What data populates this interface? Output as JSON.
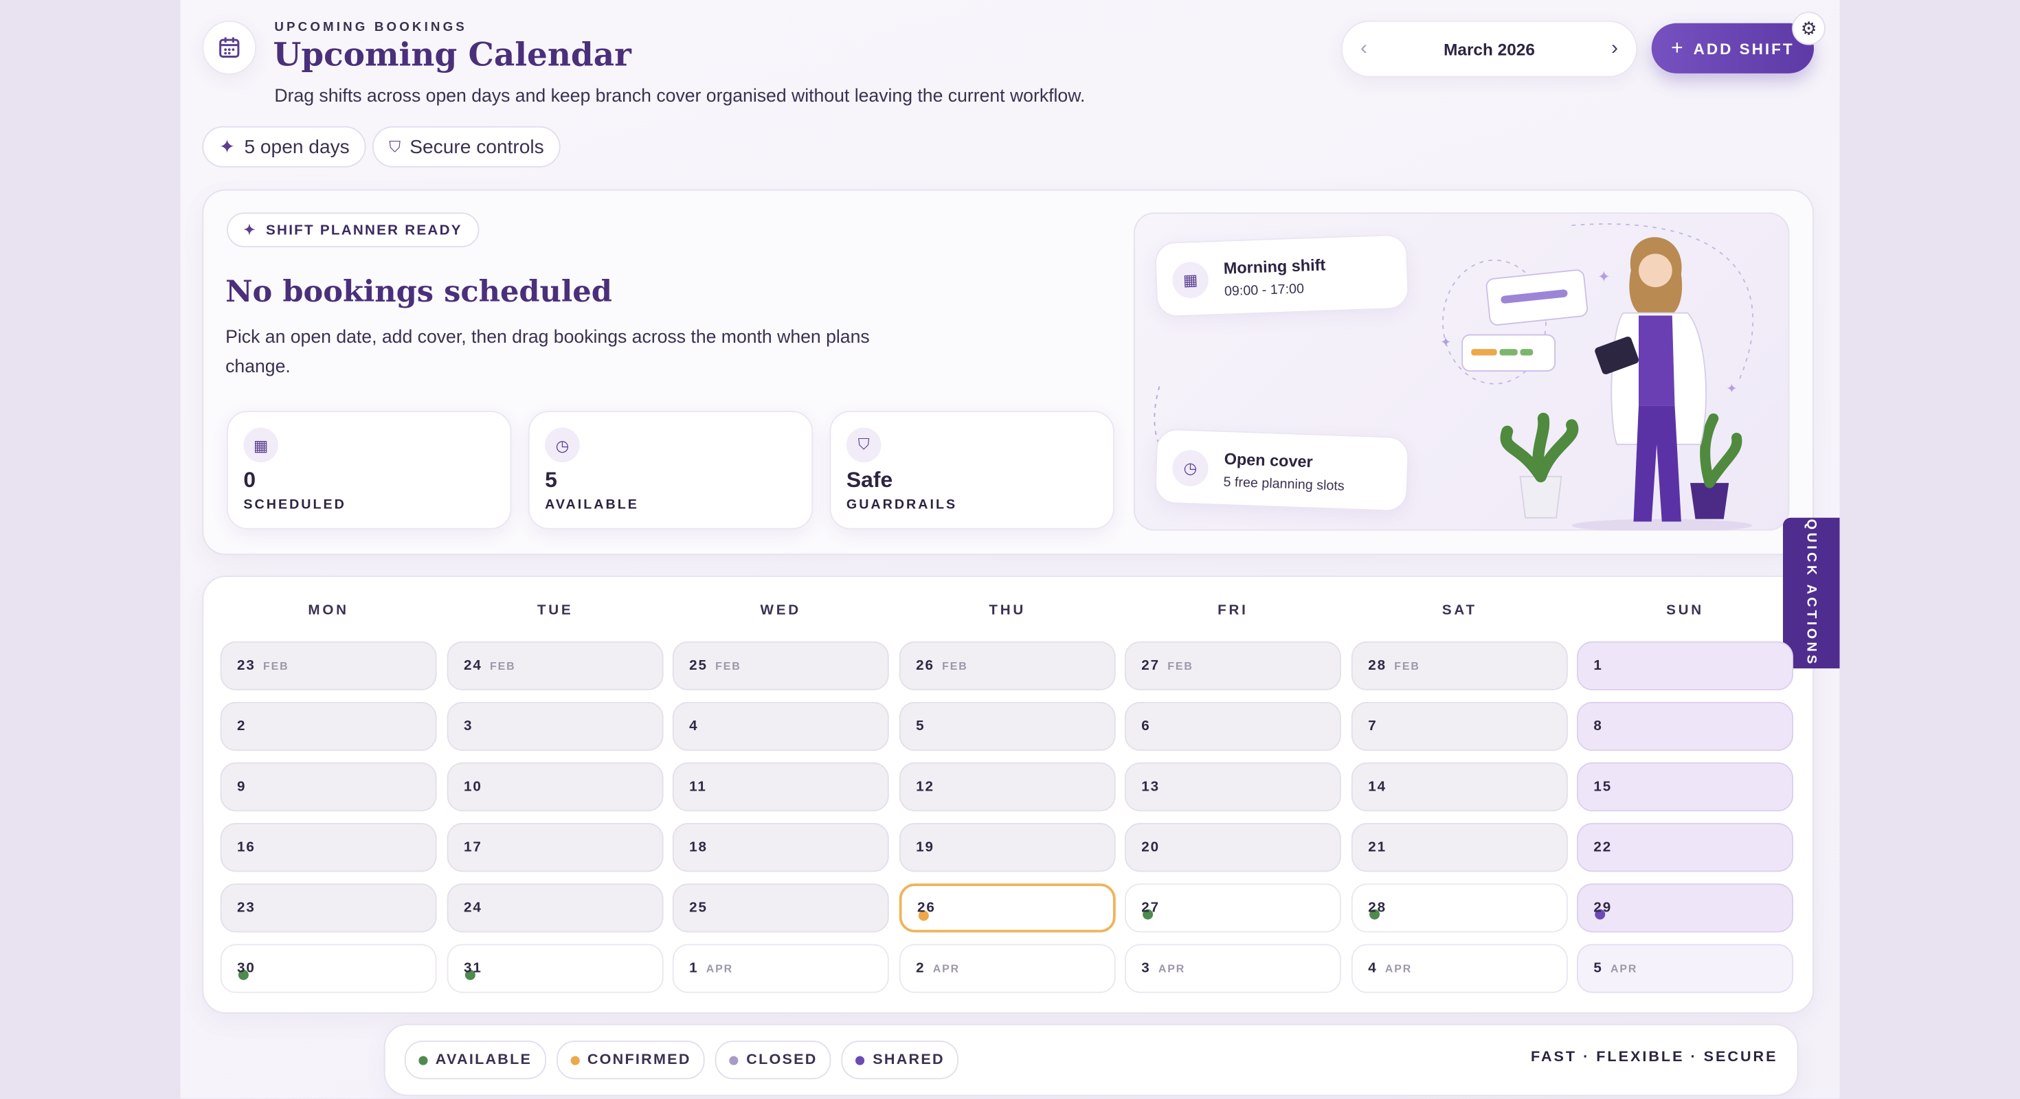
{
  "header": {
    "eyebrow": "UPCOMING BOOKINGS",
    "title": "Upcoming Calendar",
    "subtitle": "Drag shifts across open days and keep branch cover organised without leaving the current workflow.",
    "month": "March 2026",
    "add_shift": "ADD SHIFT"
  },
  "badges": [
    "5 open days",
    "Secure controls"
  ],
  "hero": {
    "pill": "SHIFT PLANNER READY",
    "title": "No bookings scheduled",
    "text": "Pick an open date, add cover, then drag bookings across the month when plans change.",
    "stats": [
      {
        "value": "0",
        "label": "SCHEDULED"
      },
      {
        "value": "5",
        "label": "AVAILABLE"
      },
      {
        "value": "Safe",
        "label": "GUARDRAILS"
      }
    ],
    "cards": [
      {
        "title": "Morning shift",
        "detail": "09:00 - 17:00"
      },
      {
        "title": "Open cover",
        "detail": "5 free planning slots"
      }
    ]
  },
  "calendar": {
    "weekdays": [
      "MON",
      "TUE",
      "WED",
      "THU",
      "FRI",
      "SAT",
      "SUN"
    ],
    "weeks": [
      [
        {
          "day": "23",
          "month": "FEB",
          "fill": "#f1eff4",
          "border": "#e3e0ea"
        },
        {
          "day": "24",
          "month": "FEB",
          "fill": "#f1eff4",
          "border": "#e3e0ea"
        },
        {
          "day": "25",
          "month": "FEB",
          "fill": "#f1eff4",
          "border": "#e3e0ea"
        },
        {
          "day": "26",
          "month": "FEB",
          "fill": "#f1eff4",
          "border": "#e3e0ea"
        },
        {
          "day": "27",
          "month": "FEB",
          "fill": "#f1eff4",
          "border": "#e3e0ea"
        },
        {
          "day": "28",
          "month": "FEB",
          "fill": "#f1eff4",
          "border": "#e3e0ea"
        },
        {
          "day": "1",
          "fill": "#eee6f8",
          "border": "#dccfee"
        }
      ],
      [
        {
          "day": "2",
          "fill": "#f1eff4",
          "border": "#e3e0ea"
        },
        {
          "day": "3",
          "fill": "#f1eff4",
          "border": "#e3e0ea"
        },
        {
          "day": "4",
          "fill": "#f1eff4",
          "border": "#e3e0ea"
        },
        {
          "day": "5",
          "fill": "#f1eff4",
          "border": "#e3e0ea"
        },
        {
          "day": "6",
          "fill": "#f1eff4",
          "border": "#e3e0ea"
        },
        {
          "day": "7",
          "fill": "#f1eff4",
          "border": "#e3e0ea"
        },
        {
          "day": "8",
          "fill": "#eee6f8",
          "border": "#dccfee"
        }
      ],
      [
        {
          "day": "9",
          "fill": "#f1eff4",
          "border": "#e3e0ea"
        },
        {
          "day": "10",
          "fill": "#f1eff4",
          "border": "#e3e0ea"
        },
        {
          "day": "11",
          "fill": "#f1eff4",
          "border": "#e3e0ea"
        },
        {
          "day": "12",
          "fill": "#f1eff4",
          "border": "#e3e0ea"
        },
        {
          "day": "13",
          "fill": "#f1eff4",
          "border": "#e3e0ea"
        },
        {
          "day": "14",
          "fill": "#f1eff4",
          "border": "#e3e0ea"
        },
        {
          "day": "15",
          "fill": "#eee6f8",
          "border": "#dccfee"
        }
      ],
      [
        {
          "day": "16",
          "fill": "#f1eff4",
          "border": "#e3e0ea"
        },
        {
          "day": "17",
          "fill": "#f1eff4",
          "border": "#e3e0ea"
        },
        {
          "day": "18",
          "fill": "#f1eff4",
          "border": "#e3e0ea"
        },
        {
          "day": "19",
          "fill": "#f1eff4",
          "border": "#e3e0ea"
        },
        {
          "day": "20",
          "fill": "#f1eff4",
          "border": "#e3e0ea"
        },
        {
          "day": "21",
          "fill": "#f1eff4",
          "border": "#e3e0ea"
        },
        {
          "day": "22",
          "fill": "#eee6f8",
          "border": "#dccfee"
        }
      ],
      [
        {
          "day": "23",
          "fill": "#f1eff4",
          "border": "#e3e0ea"
        },
        {
          "day": "24",
          "fill": "#f1eff4",
          "border": "#e3e0ea"
        },
        {
          "day": "25",
          "fill": "#f1eff4",
          "border": "#e3e0ea"
        },
        {
          "day": "26",
          "fill": "#ffffff",
          "border": "#f0b45a",
          "dot": "#eda84a"
        },
        {
          "day": "27",
          "fill": "#ffffff",
          "border": "#ebe7f1",
          "dot": "#4f8a4f"
        },
        {
          "day": "28",
          "fill": "#ffffff",
          "border": "#ebe7f1",
          "dot": "#4f8a4f"
        },
        {
          "day": "29",
          "fill": "#eee6f8",
          "border": "#dccfee",
          "dot": "#6c4bb5"
        }
      ],
      [
        {
          "day": "30",
          "fill": "#ffffff",
          "border": "#ebe7f1",
          "dot": "#4f8a4f"
        },
        {
          "day": "31",
          "fill": "#ffffff",
          "border": "#ebe7f1",
          "dot": "#4f8a4f"
        },
        {
          "day": "1",
          "month": "APR",
          "fill": "#ffffff",
          "border": "#ebe7f1"
        },
        {
          "day": "2",
          "month": "APR",
          "fill": "#ffffff",
          "border": "#ebe7f1"
        },
        {
          "day": "3",
          "month": "APR",
          "fill": "#ffffff",
          "border": "#ebe7f1"
        },
        {
          "day": "4",
          "month": "APR",
          "fill": "#ffffff",
          "border": "#ebe7f1"
        },
        {
          "day": "5",
          "month": "APR",
          "fill": "#f6f2fb",
          "border": "#e6ddf2"
        }
      ]
    ]
  },
  "legend": [
    {
      "label": "AVAILABLE",
      "color": "#4f8a4f"
    },
    {
      "label": "CONFIRMED",
      "color": "#eda84a"
    },
    {
      "label": "CLOSED",
      "color": "#a99cc4"
    },
    {
      "label": "SHARED",
      "color": "#6c4bb5"
    }
  ],
  "tagline": "FAST · FLEXIBLE · SECURE",
  "quick_actions": "QUICK ACTIONS"
}
